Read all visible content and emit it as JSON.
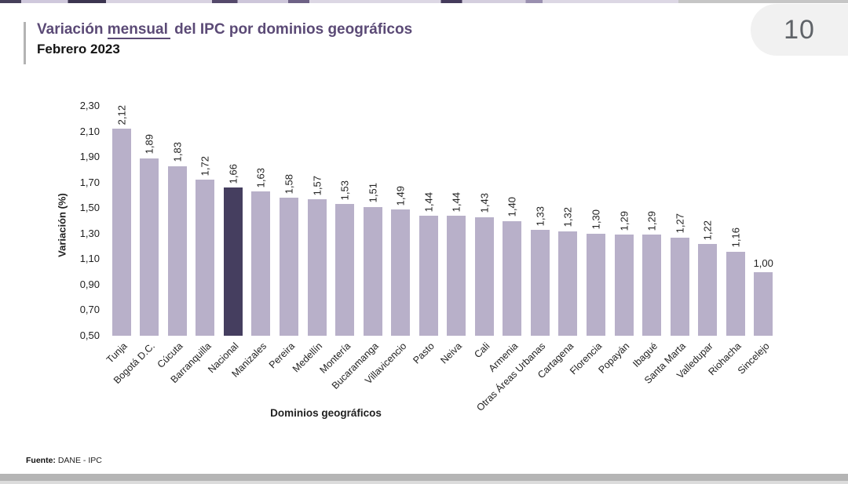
{
  "page": {
    "page_number": "10"
  },
  "title": {
    "part1": "Variación ",
    "underlined": "mensual",
    "part2": " del IPC por dominios geográficos",
    "subtitle": "Febrero 2023"
  },
  "source": {
    "label": "Fuente:",
    "text": " DANE - IPC"
  },
  "colors": {
    "title_purple": "#5b4a76",
    "accent_gray": "#b3b3b3",
    "bar": "#b8b0c9",
    "bar_highlight": "#453e5f",
    "text_dark": "#1f1f1f",
    "badge_bg": "#f1f1f1",
    "badge_text": "#5f6368",
    "strip_gray": "#b5b5b5"
  },
  "chart_data": {
    "type": "bar",
    "title": "Variación mensual del IPC por dominios geográficos — Febrero 2023",
    "xlabel": "Dominios geográficos",
    "ylabel": "Variación (%)",
    "ylim": [
      0.5,
      2.3
    ],
    "grid": false,
    "legend": false,
    "highlight_index": 4,
    "horizontal_value_label_index": 23,
    "yticks": [
      {
        "label": "2,30",
        "value": 2.3
      },
      {
        "label": "2,10",
        "value": 2.1
      },
      {
        "label": "1,90",
        "value": 1.9
      },
      {
        "label": "1,70",
        "value": 1.7
      },
      {
        "label": "1,50",
        "value": 1.5
      },
      {
        "label": "1,30",
        "value": 1.3
      },
      {
        "label": "1,10",
        "value": 1.1
      },
      {
        "label": "0,90",
        "value": 0.9
      },
      {
        "label": "0,70",
        "value": 0.7
      },
      {
        "label": "0,50",
        "value": 0.5
      }
    ],
    "categories": [
      "Tunja",
      "Bogotá D.C.",
      "Cúcuta",
      "Barranquilla",
      "Nacional",
      "Manizales",
      "Pereira",
      "Medellín",
      "Montería",
      "Bucaramanga",
      "Villavicencio",
      "Pasto",
      "Neiva",
      "Cali",
      "Armenia",
      "Otras Áreas Urbanas",
      "Cartagena",
      "Florencia",
      "Popayán",
      "Ibagué",
      "Santa Marta",
      "Valledupar",
      "Riohacha",
      "Sincelejo"
    ],
    "values": [
      2.12,
      1.89,
      1.83,
      1.72,
      1.66,
      1.63,
      1.58,
      1.57,
      1.53,
      1.51,
      1.49,
      1.44,
      1.44,
      1.43,
      1.4,
      1.33,
      1.32,
      1.3,
      1.29,
      1.29,
      1.27,
      1.22,
      1.16,
      1.0
    ],
    "labels": [
      "2,12",
      "1,89",
      "1,83",
      "1,72",
      "1,66",
      "1,63",
      "1,58",
      "1,57",
      "1,53",
      "1,51",
      "1,49",
      "1,44",
      "1,44",
      "1,43",
      "1,40",
      "1,33",
      "1,32",
      "1,30",
      "1,29",
      "1,29",
      "1,27",
      "1,22",
      "1,16",
      "1,00"
    ]
  }
}
